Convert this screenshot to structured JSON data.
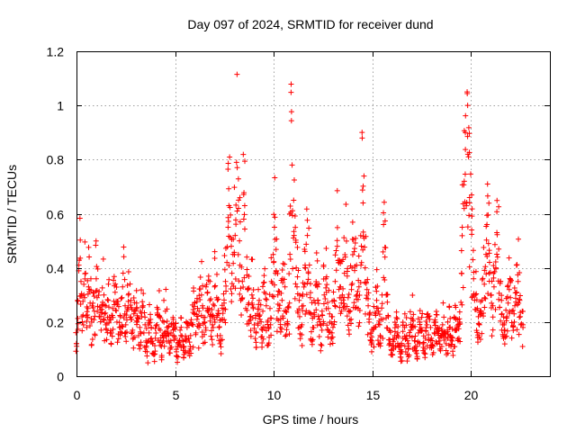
{
  "chart_data": {
    "type": "scatter",
    "title": "Day 097 of 2024, SRMTID for receiver dund",
    "xlabel": "GPS time / hours",
    "ylabel": "SRMTID / TECUs",
    "xlim": [
      0,
      24
    ],
    "ylim": [
      0,
      1.2
    ],
    "xticks": [
      0,
      5,
      10,
      15,
      20
    ],
    "xtick_labels": [
      "0",
      "5",
      "10",
      "15",
      "20"
    ],
    "yticks": [
      0,
      0.2,
      0.4,
      0.6,
      0.8,
      1.0,
      1.2
    ],
    "ytick_labels": [
      "0",
      "0.2",
      "0.4",
      "0.6",
      "0.8",
      "1",
      "1.2"
    ],
    "grid": true,
    "marker": "+",
    "marker_color": "#ff0000",
    "x_step_hours": 0.01667,
    "series": [
      {
        "name": "SRMTID",
        "description": "Per-interval SRMTID samples, values sampled along GPS time",
        "x_start": 0.0,
        "x_end": 22.6,
        "values": [
          0.12,
          0.28,
          0.41,
          0.35,
          0.22,
          0.3,
          0.38,
          0.18,
          0.25,
          0.33,
          0.27,
          0.2,
          0.31,
          0.24,
          0.36,
          0.29,
          0.22,
          0.17,
          0.26,
          0.3,
          0.23,
          0.19,
          0.28,
          0.34,
          0.21,
          0.16,
          0.25,
          0.31,
          0.27,
          0.2,
          0.18,
          0.22,
          0.29,
          0.33,
          0.26,
          0.19,
          0.24,
          0.3,
          0.28,
          0.21,
          0.17,
          0.23,
          0.27,
          0.2,
          0.15,
          0.18,
          0.22,
          0.26,
          0.19,
          0.13,
          0.09,
          0.16,
          0.21,
          0.18,
          0.12,
          0.08,
          0.14,
          0.19,
          0.22,
          0.17,
          0.11,
          0.15,
          0.2,
          0.24,
          0.18,
          0.13,
          0.1,
          0.16,
          0.21,
          0.19,
          0.14,
          0.09,
          0.12,
          0.17,
          0.15,
          0.11,
          0.08,
          0.13,
          0.18,
          0.14,
          0.1,
          0.15,
          0.19,
          0.23,
          0.27,
          0.21,
          0.18,
          0.24,
          0.3,
          0.26,
          0.2,
          0.17,
          0.25,
          0.31,
          0.28,
          0.22,
          0.19,
          0.26,
          0.33,
          0.29,
          0.23,
          0.18,
          0.15,
          0.21,
          0.27,
          0.35,
          0.42,
          0.55,
          0.63,
          0.48,
          0.38,
          0.45,
          0.52,
          0.79,
          0.62,
          0.5,
          0.41,
          0.35,
          0.58,
          0.63,
          0.44,
          0.32,
          0.27,
          0.22,
          0.3,
          0.25,
          0.19,
          0.16,
          0.23,
          0.28,
          0.21,
          0.17,
          0.24,
          0.31,
          0.26,
          0.2,
          0.18,
          0.25,
          0.35,
          0.42,
          0.55,
          0.38,
          0.3,
          0.25,
          0.21,
          0.28,
          0.36,
          0.33,
          0.24,
          0.19,
          0.27,
          0.45,
          0.78,
          0.65,
          0.52,
          0.4,
          0.33,
          0.28,
          0.22,
          0.19,
          0.26,
          0.34,
          0.41,
          0.52,
          0.38,
          0.29,
          0.23,
          0.18,
          0.22,
          0.27,
          0.33,
          0.28,
          0.21,
          0.17,
          0.24,
          0.3,
          0.36,
          0.31,
          0.25,
          0.2,
          0.16,
          0.22,
          0.28,
          0.35,
          0.48,
          0.42,
          0.33,
          0.27,
          0.3,
          0.38,
          0.44,
          0.37,
          0.29,
          0.24,
          0.32,
          0.4,
          0.46,
          0.39,
          0.3,
          0.25,
          0.33,
          0.41,
          0.64,
          0.51,
          0.4,
          0.32,
          0.26,
          0.2,
          0.16,
          0.13,
          0.18,
          0.23,
          0.28,
          0.24,
          0.19,
          0.15,
          0.21,
          0.56,
          0.44,
          0.3,
          0.22,
          0.17,
          0.12,
          0.08,
          0.1,
          0.15,
          0.19,
          0.16,
          0.11,
          0.07,
          0.09,
          0.14,
          0.18,
          0.15,
          0.1,
          0.12,
          0.17,
          0.21,
          0.18,
          0.13,
          0.09,
          0.11,
          0.16,
          0.2,
          0.17,
          0.12,
          0.1,
          0.14,
          0.19,
          0.22,
          0.18,
          0.14,
          0.11,
          0.16,
          0.2,
          0.17,
          0.13,
          0.1,
          0.15,
          0.19,
          0.16,
          0.12,
          0.14,
          0.18,
          0.15,
          0.11,
          0.13,
          0.17,
          0.21,
          0.18,
          0.14,
          0.2,
          0.38,
          0.55,
          0.72,
          0.9,
          1.05,
          0.82,
          0.66,
          0.54,
          0.43,
          0.36,
          0.3,
          0.25,
          0.22,
          0.19,
          0.24,
          0.28,
          0.34,
          0.45,
          0.56,
          0.49,
          0.38,
          0.3,
          0.26,
          0.33,
          0.4,
          0.53,
          0.44,
          0.35,
          0.28,
          0.23,
          0.19,
          0.17,
          0.22,
          0.27,
          0.32,
          0.29,
          0.24,
          0.2,
          0.26,
          0.31,
          0.35,
          0.28,
          0.22,
          0.18
        ]
      }
    ]
  }
}
